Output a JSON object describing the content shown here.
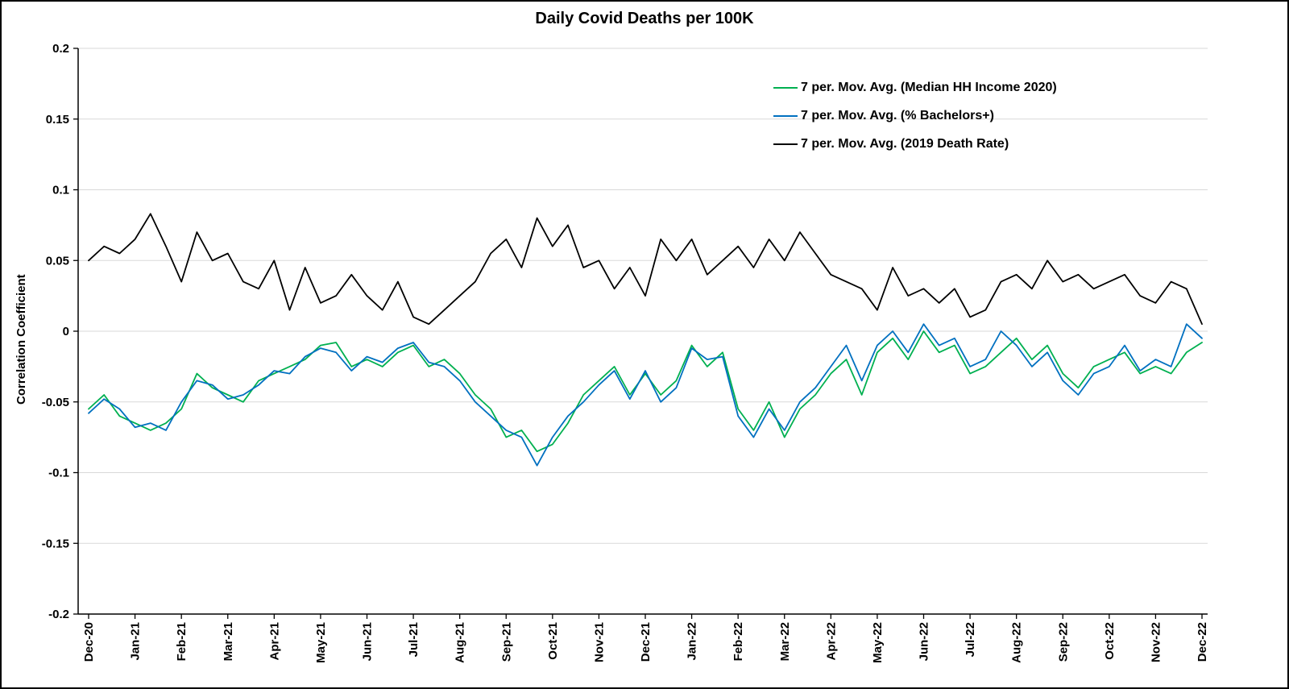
{
  "chart_data": {
    "type": "line",
    "title": "Daily Covid Deaths per 100K",
    "xlabel": "",
    "ylabel": "Correlation Coefficient",
    "ylim": [
      -0.2,
      0.2
    ],
    "ytick_step": 0.05,
    "grid": "horizontal",
    "legend_position": "upper-right",
    "gridline_color": "#d9d9d9",
    "axis_color": "#000000",
    "points_per_month": 3,
    "x_tick_labels": [
      "Dec-20",
      "Jan-21",
      "Feb-21",
      "Mar-21",
      "Apr-21",
      "May-21",
      "Jun-21",
      "Jul-21",
      "Aug-21",
      "Sep-21",
      "Oct-21",
      "Nov-21",
      "Dec-21",
      "Jan-22",
      "Feb-22",
      "Mar-22",
      "Apr-22",
      "May-22",
      "Jun-22",
      "Jul-22",
      "Aug-22",
      "Sep-22",
      "Oct-22",
      "Nov-22",
      "Dec-22"
    ],
    "series": [
      {
        "name": "7 per. Mov. Avg. (Median HH Income 2020)",
        "color": "#00B050",
        "values": [
          -0.055,
          -0.045,
          -0.06,
          -0.065,
          -0.07,
          -0.065,
          -0.055,
          -0.03,
          -0.04,
          -0.045,
          -0.05,
          -0.035,
          -0.03,
          -0.025,
          -0.02,
          -0.01,
          -0.008,
          -0.025,
          -0.02,
          -0.025,
          -0.015,
          -0.01,
          -0.025,
          -0.02,
          -0.03,
          -0.045,
          -0.055,
          -0.075,
          -0.07,
          -0.085,
          -0.08,
          -0.065,
          -0.045,
          -0.035,
          -0.025,
          -0.045,
          -0.03,
          -0.045,
          -0.035,
          -0.01,
          -0.025,
          -0.015,
          -0.055,
          -0.07,
          -0.05,
          -0.075,
          -0.055,
          -0.045,
          -0.03,
          -0.02,
          -0.045,
          -0.015,
          -0.005,
          -0.02,
          0.0,
          -0.015,
          -0.01,
          -0.03,
          -0.025,
          -0.015,
          -0.005,
          -0.02,
          -0.01,
          -0.03,
          -0.04,
          -0.025,
          -0.02,
          -0.015,
          -0.03,
          -0.025,
          -0.03,
          -0.015,
          -0.008
        ]
      },
      {
        "name": "7 per. Mov. Avg. (% Bachelors+)",
        "color": "#0070C0",
        "values": [
          -0.058,
          -0.048,
          -0.055,
          -0.068,
          -0.065,
          -0.07,
          -0.05,
          -0.035,
          -0.038,
          -0.048,
          -0.045,
          -0.038,
          -0.028,
          -0.03,
          -0.018,
          -0.012,
          -0.015,
          -0.028,
          -0.018,
          -0.022,
          -0.012,
          -0.008,
          -0.022,
          -0.025,
          -0.035,
          -0.05,
          -0.06,
          -0.07,
          -0.075,
          -0.095,
          -0.075,
          -0.06,
          -0.05,
          -0.038,
          -0.028,
          -0.048,
          -0.028,
          -0.05,
          -0.04,
          -0.012,
          -0.02,
          -0.018,
          -0.06,
          -0.075,
          -0.055,
          -0.07,
          -0.05,
          -0.04,
          -0.025,
          -0.01,
          -0.035,
          -0.01,
          0.0,
          -0.015,
          0.005,
          -0.01,
          -0.005,
          -0.025,
          -0.02,
          0.0,
          -0.01,
          -0.025,
          -0.015,
          -0.035,
          -0.045,
          -0.03,
          -0.025,
          -0.01,
          -0.028,
          -0.02,
          -0.025,
          0.005,
          -0.005
        ]
      },
      {
        "name": "7 per. Mov. Avg. (2019 Death Rate)",
        "color": "#000000",
        "values": [
          0.05,
          0.06,
          0.055,
          0.065,
          0.083,
          0.06,
          0.035,
          0.07,
          0.05,
          0.055,
          0.035,
          0.03,
          0.05,
          0.015,
          0.045,
          0.02,
          0.025,
          0.04,
          0.025,
          0.015,
          0.035,
          0.01,
          0.005,
          0.015,
          0.025,
          0.035,
          0.055,
          0.065,
          0.045,
          0.08,
          0.06,
          0.075,
          0.045,
          0.05,
          0.03,
          0.045,
          0.025,
          0.065,
          0.05,
          0.065,
          0.04,
          0.05,
          0.06,
          0.045,
          0.065,
          0.05,
          0.07,
          0.055,
          0.04,
          0.035,
          0.03,
          0.015,
          0.045,
          0.025,
          0.03,
          0.02,
          0.03,
          0.01,
          0.015,
          0.035,
          0.04,
          0.03,
          0.05,
          0.035,
          0.04,
          0.03,
          0.035,
          0.04,
          0.025,
          0.02,
          0.035,
          0.03,
          0.005
        ]
      }
    ]
  }
}
